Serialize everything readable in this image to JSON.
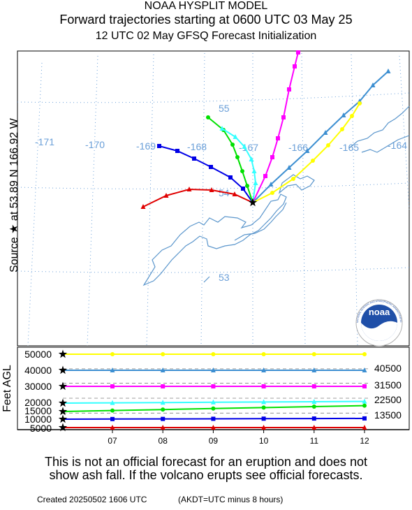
{
  "header": {
    "title_line1": "NOAA HYSPLIT MODEL",
    "title_line2": "Forward trajectories starting at 0600 UTC 03 May 25",
    "title_line3": "12 UTC 02 May    GFSQ  Forecast Initialization"
  },
  "source_label": "Source ★  at   53.89 N  166.92 W",
  "map": {
    "lon_labels": [
      "-171",
      "-170",
      "-169",
      "-168",
      "-167",
      "-166",
      "-165",
      "-164"
    ],
    "lat_labels": [
      "55",
      "54",
      "53"
    ],
    "logo_text": "noaa",
    "logo_ring_text": "NATIONAL OCEANIC AND ATMOSPHERIC ADMINISTRATION · U.S. DEPARTMENT OF COMMERCE"
  },
  "colors": {
    "red": "#e00000",
    "blue": "#0000e6",
    "green": "#00e000",
    "cyan": "#33ffff",
    "magenta": "#ff00ff",
    "steelblue": "#3d8fd1",
    "yellow": "#ffff00",
    "grid": "#6a9fd8",
    "coast": "#5b96cc"
  },
  "chart_data": [
    {
      "type": "line",
      "title": "",
      "xlabel": "",
      "ylabel": "Feet AGL",
      "x": [
        "07",
        "08",
        "09",
        "10",
        "11",
        "12"
      ],
      "y_ticks": [
        "50000",
        "40000",
        "30000",
        "20000",
        "15000",
        "10000",
        "5000"
      ],
      "right_labels": [
        "40500",
        "31500",
        "22500",
        "13500"
      ],
      "series": [
        {
          "color": "yellow",
          "start_ft": 50000,
          "end_ft": 50000
        },
        {
          "color": "steelblue",
          "start_ft": 40000,
          "end_ft": 40000
        },
        {
          "color": "magenta",
          "start_ft": 30000,
          "end_ft": 30000
        },
        {
          "color": "cyan",
          "start_ft": 20000,
          "end_ft": 21000
        },
        {
          "color": "green",
          "start_ft": 15000,
          "end_ft": 18500
        },
        {
          "color": "blue",
          "start_ft": 10000,
          "end_ft": 10500
        },
        {
          "color": "red",
          "start_ft": 5000,
          "end_ft": 5000
        }
      ]
    }
  ],
  "footer": {
    "disclaimer_line1": "This is not an official forecast for an eruption and does not",
    "disclaimer_line2": "show ash fall. If the volcano erupts see official forecasts.",
    "created": "Created 20250502 1606 UTC",
    "akdt": "(AKDT=UTC minus 8 hours)"
  }
}
